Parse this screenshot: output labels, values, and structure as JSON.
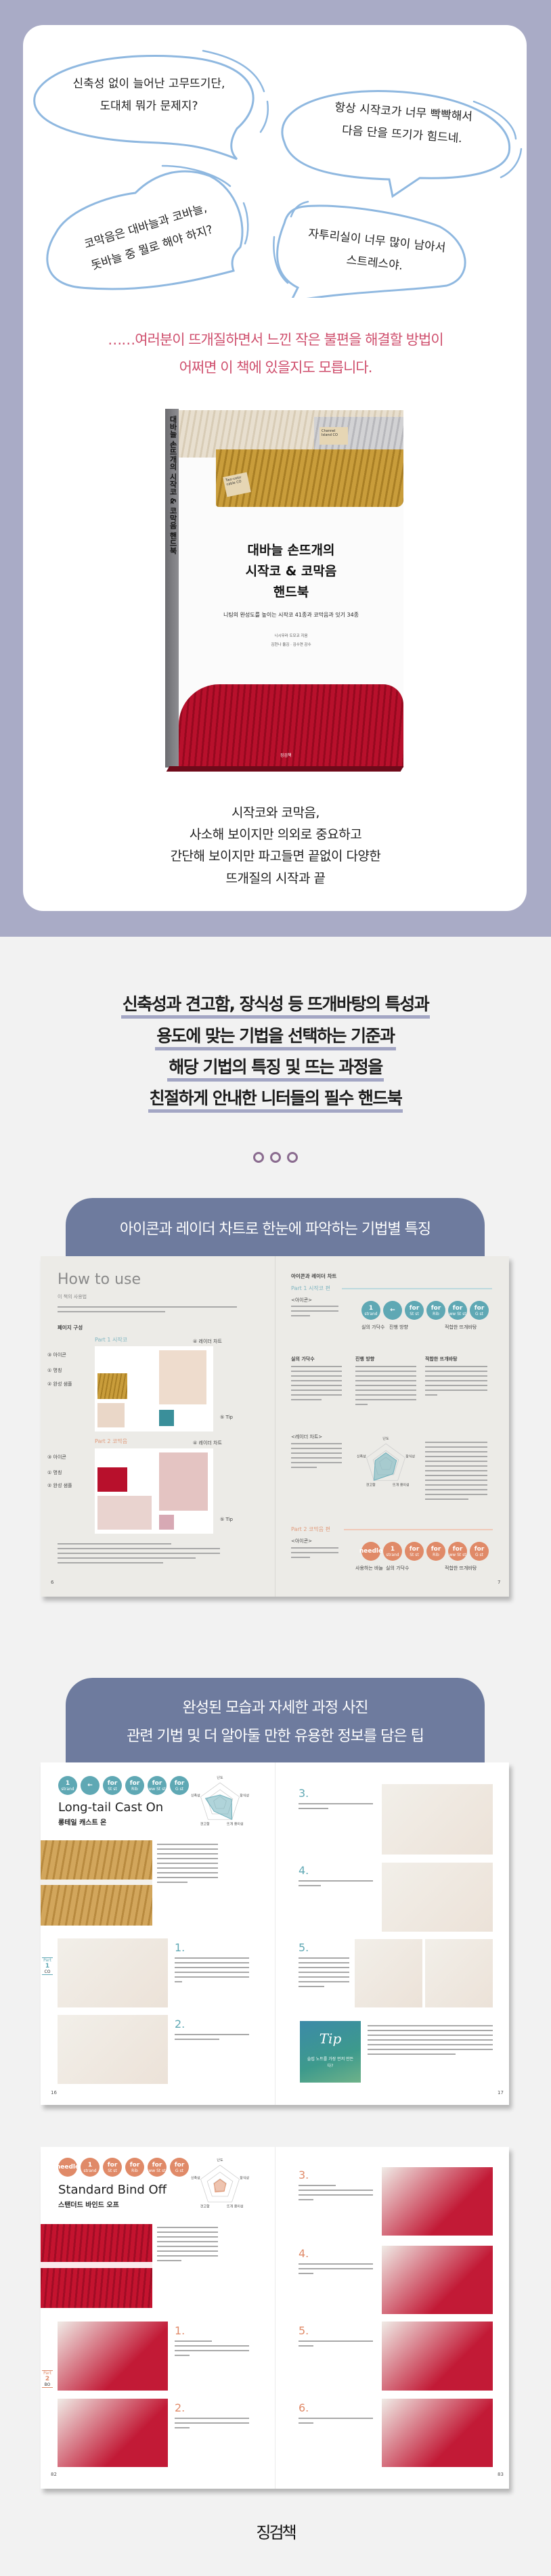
{
  "colors": {
    "lavender": "#a9abc6",
    "bubble_stroke": "#8fb8e0",
    "accent_red": "#cf4f6d",
    "banner": "#6e7b9e",
    "underline": "#a3a6c4",
    "teal": "#5fa8b4",
    "orange": "#e08a68"
  },
  "bubbles": [
    {
      "lines": [
        "신축성 없이 늘어난 고무뜨기단,",
        "도대체 뭐가 문제지?"
      ]
    },
    {
      "lines": [
        "항상 시작코가 너무 빡빡해서",
        "다음 단을 뜨기가 힘드네."
      ]
    },
    {
      "lines": [
        "코막음은 대바늘과 코바늘,",
        "돗바늘 중 뭘로 해야 하지?"
      ]
    },
    {
      "lines": [
        "자투리실이 너무 많이 남아서",
        "스트레스야."
      ]
    }
  ],
  "intro_lines": [
    "……여러분이 뜨개질하면서 느낀 작은 불편을 해결할 방법이",
    "어쩌면 이 책에 있을지도 모릅니다."
  ],
  "book": {
    "spine_title": "대바늘 손뜨개의 시작코 & 코막음 핸드북",
    "title_lines": [
      "대바늘 손뜨개의",
      "시작코 & 코막음",
      "핸드북"
    ],
    "subtitle": "니팅의 완성도를 높이는 시작코 41종과 코막음과 잇기 34종",
    "authors": [
      "니시무라 도모코 지음",
      "김현나 옮김 · 김수연 감수"
    ],
    "tags": [
      "Channel Island CO",
      "Two-color cable CO"
    ]
  },
  "tagline_lines": [
    "시작코와 코막음,",
    "사소해 보이지만 의외로 중요하고",
    "간단해 보이지만 파고들면 끝없이 다양한",
    "뜨개질의 시작과 끝"
  ],
  "headline_lines": [
    "신축성과 견고함, 장식성 등 뜨개바탕의 특성과",
    "용도에 맞는 기법을 선택하는 기준과",
    "해당 기법의 특징 및 뜨는 과정을",
    "친절하게 안내한 니터들의 필수 핸드북"
  ],
  "banner1": {
    "lines": [
      "아이콘과 레이더 차트로 한눈에 파악하는 기법별 특징"
    ]
  },
  "banner2": {
    "lines": [
      "완성된 모습과 자세한 과정 사진",
      "관련 기법 및 더 알아둘 만한 유용한 정보를 담은 팁"
    ]
  },
  "icons_part1": [
    {
      "top": "1",
      "bottom": "strand"
    },
    {
      "top": "←",
      "bottom": ""
    },
    {
      "top": "for",
      "bottom": "St st"
    },
    {
      "top": "for",
      "bottom": "Rib"
    },
    {
      "top": "for",
      "bottom": "ww St st"
    },
    {
      "top": "for",
      "bottom": "G st"
    }
  ],
  "icons_part2": [
    {
      "top": "needle",
      "bottom": ""
    },
    {
      "top": "1",
      "bottom": "strand"
    },
    {
      "top": "for",
      "bottom": "St st"
    },
    {
      "top": "for",
      "bottom": "Rib"
    },
    {
      "top": "for",
      "bottom": "ww St st"
    },
    {
      "top": "for",
      "bottom": "G st"
    }
  ],
  "spread1": {
    "left": {
      "title": "How to use",
      "subtitle": "이 책의 사용법",
      "section": "페이지 구성",
      "part1": "Part 1  시작코",
      "part2": "Part 2  코막음",
      "callouts": [
        "③ 아이콘",
        "① 명칭",
        "② 완성 샘플",
        "④ 레이더 차트",
        "⑤ Tip"
      ],
      "page": "6"
    },
    "right": {
      "section": "아이콘과 레이더 차트",
      "part1": "Part 1  시작코 편",
      "part2": "Part 2  코막음 편",
      "icon_label": "<아이콘>",
      "radar_label": "<레이더 차트>",
      "icon_groups_p1": [
        "실의 가닥수",
        "진행 방향",
        "적합한 뜨개바탕"
      ],
      "sub_heads": [
        "실의 가닥수",
        "진행 방향",
        "적합한 뜨개바탕"
      ],
      "icon_groups_p2": [
        "사용하는 바늘",
        "실의 가닥수",
        "적합한 뜨개바탕"
      ],
      "radar_axes": [
        "난도",
        "장식성",
        "뜨개 용이성",
        "견고함",
        "신축성"
      ],
      "page": "7"
    }
  },
  "spread2": {
    "title_en": "Long-tail Cast On",
    "title_ko": "롱테일 캐스트 온",
    "radar_values": [
      0.4,
      0.6,
      1.0,
      0.5,
      0.75
    ],
    "steps_left": [
      "1.",
      "2."
    ],
    "steps_right": [
      "3.",
      "4.",
      "5."
    ],
    "part_tab": {
      "label": "Part",
      "num": "1",
      "code": "CO"
    },
    "tip": {
      "title": "Tip",
      "question": "슬립 노트를 가장 먼저 만든다?"
    },
    "pages": [
      "16",
      "17"
    ]
  },
  "spread3": {
    "title_en": "Standard Bind Off",
    "title_ko": "스탠더드 바인드 오프",
    "radar_values": [
      0.3,
      0.3,
      0.35,
      0.4,
      0.3
    ],
    "steps_left": [
      "1.",
      "2."
    ],
    "steps_right": [
      "3.",
      "4.",
      "5.",
      "6."
    ],
    "part_tab": {
      "label": "Part",
      "num": "2",
      "code": "BO"
    },
    "pages": [
      "82",
      "83"
    ]
  },
  "publisher_logo": "징검책"
}
